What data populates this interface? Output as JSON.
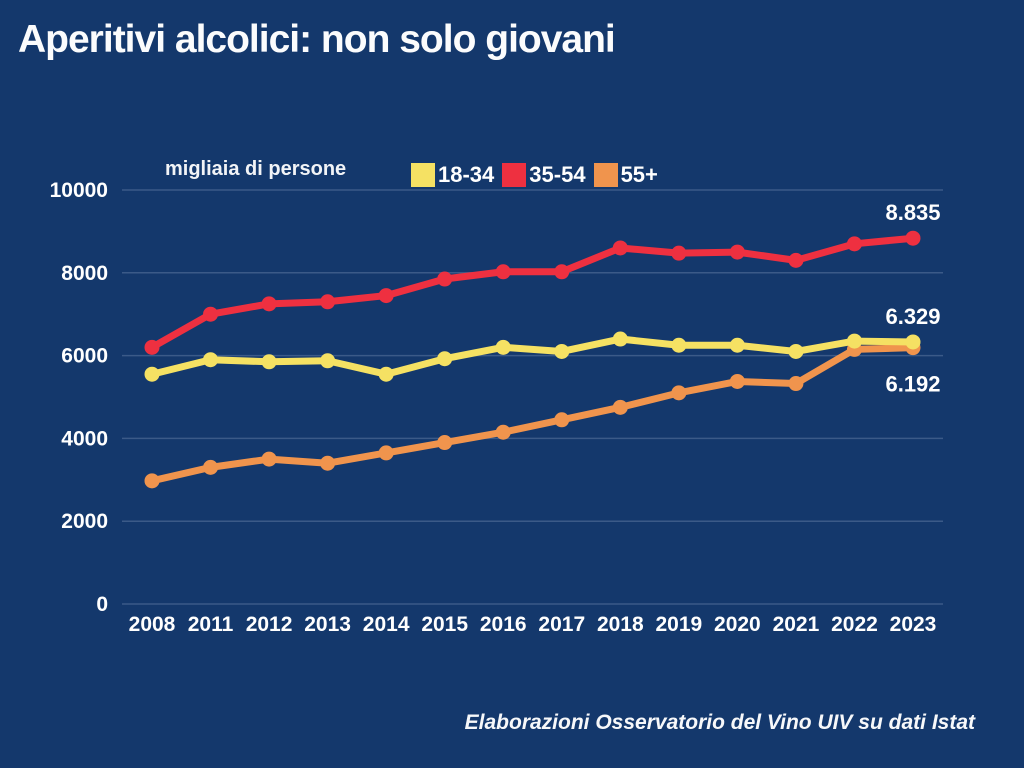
{
  "title": "Aperitivi alcolici: non solo giovani",
  "footer": "Elaborazioni Osservatorio del Vino UIV su dati Istat",
  "colors": {
    "background": "#14386C",
    "gridline": "rgba(200,215,235,0.22)",
    "text": "#FFFFFF"
  },
  "chart_data": {
    "type": "line",
    "title": "Aperitivi alcolici: non solo giovani",
    "unit_label": "migliaia di persone",
    "ylabel": "migliaia di persone",
    "xlabel": "",
    "grid": true,
    "legend_position": "top",
    "ylim": [
      0,
      10000
    ],
    "yticks": [
      0,
      2000,
      4000,
      6000,
      8000,
      10000
    ],
    "categories": [
      "2008",
      "2011",
      "2012",
      "2013",
      "2014",
      "2015",
      "2016",
      "2017",
      "2018",
      "2019",
      "2020",
      "2021",
      "2022",
      "2023"
    ],
    "series": [
      {
        "name": "55+",
        "color": "#F0944D",
        "values": [
          2975,
          3300,
          3500,
          3400,
          3650,
          3900,
          4150,
          4450,
          4750,
          5100,
          5375,
          5325,
          6150,
          6192
        ]
      },
      {
        "name": "18-34",
        "color": "#F5E163",
        "values": [
          5550,
          5900,
          5850,
          5875,
          5550,
          5925,
          6200,
          6100,
          6400,
          6250,
          6250,
          6100,
          6350,
          6329
        ]
      },
      {
        "name": "35-54",
        "color": "#EE3040",
        "values": [
          6200,
          7000,
          7250,
          7300,
          7450,
          7850,
          8025,
          8025,
          8600,
          8475,
          8500,
          8300,
          8700,
          8835
        ]
      }
    ],
    "legend_order": [
      "18-34",
      "35-54",
      "55+"
    ],
    "annotations": [
      {
        "text": "8.835",
        "series": "35-54",
        "category": "2023",
        "position": "above"
      },
      {
        "text": "6.329",
        "series": "18-34",
        "category": "2023",
        "position": "above"
      },
      {
        "text": "6.192",
        "series": "55+",
        "category": "2023",
        "position": "below"
      }
    ]
  }
}
